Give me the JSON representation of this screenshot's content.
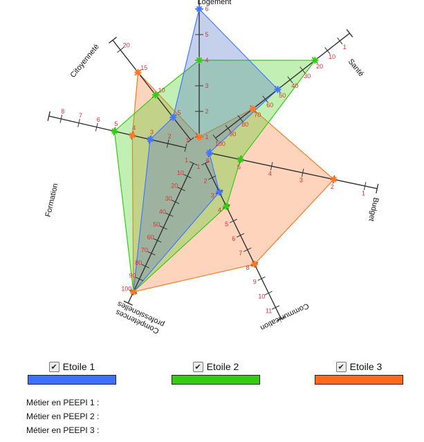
{
  "chart_data": {
    "type": "radar",
    "axes": [
      {
        "label": "Logement",
        "ticks": [
          "1",
          "2",
          "3",
          "4",
          "5",
          "6"
        ],
        "reversed": true
      },
      {
        "label": "Santé",
        "ticks": [
          "100",
          "90",
          "80",
          "70",
          "60",
          "50",
          "40",
          "30",
          "20",
          "10",
          "1"
        ]
      },
      {
        "label": "Budget",
        "ticks": [
          "6",
          "5",
          "4",
          "3",
          "2",
          "1"
        ],
        "reversed": true
      },
      {
        "label": "Communication",
        "ticks": [
          "1",
          "2",
          "3",
          "4",
          "5",
          "6",
          "7",
          "8",
          "9",
          "10",
          "11"
        ]
      },
      {
        "label": "Compétences professionelles",
        "ticks": [
          "1",
          "10",
          "20",
          "30",
          "40",
          "50",
          "60",
          "70",
          "80",
          "90",
          "100"
        ]
      },
      {
        "label": "Formation",
        "ticks": [
          "1",
          "2",
          "3",
          "4",
          "5",
          "6",
          "7",
          "8"
        ]
      },
      {
        "label": "Citoyenneté",
        "ticks": [
          "1",
          "5",
          "10",
          "15",
          "20"
        ]
      }
    ],
    "series": [
      {
        "name": "Etoile 1",
        "color": "#4477ff",
        "values": [
          6,
          50,
          6,
          3,
          100,
          3,
          5
        ]
      },
      {
        "name": "Etoile 2",
        "color": "#33cc11",
        "values": [
          4,
          20,
          5,
          4,
          100,
          5,
          10
        ]
      },
      {
        "name": "Etoile 3",
        "color": "#ff7722",
        "values": [
          1,
          70,
          2,
          8,
          100,
          4,
          15
        ]
      }
    ]
  },
  "legend": [
    {
      "label": "Etoile 1",
      "checked": true,
      "color": "#3f6fff"
    },
    {
      "label": "Etoile 2",
      "checked": true,
      "color": "#33cc11"
    },
    {
      "label": "Etoile 3",
      "checked": true,
      "color": "#ff6a1a"
    }
  ],
  "checkbox_glyph": "✔",
  "metiers": [
    "Métier en PEEPI 1 :",
    "Métier en PEEPI 2 :",
    "Métier en PEEPI 3 :"
  ]
}
